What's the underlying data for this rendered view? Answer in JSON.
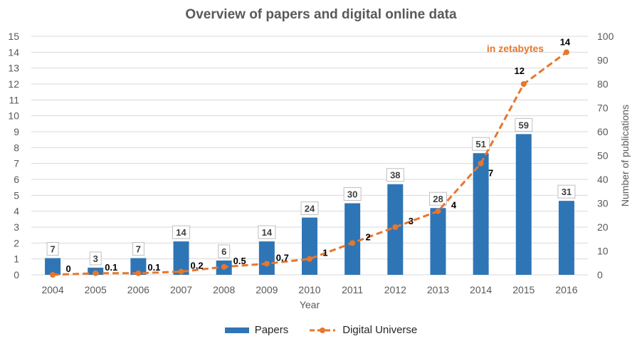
{
  "chart_data": {
    "type": "bar",
    "title": "Overview of papers and digital online data",
    "categories": [
      "2004",
      "2005",
      "2006",
      "2007",
      "2008",
      "2009",
      "2010",
      "2011",
      "2012",
      "2013",
      "2014",
      "2015",
      "2016"
    ],
    "xlabel": "Year",
    "left_axis": {
      "ticks": [
        "0",
        "1",
        "2",
        "3",
        "4",
        "5",
        "6",
        "7",
        "8",
        "9",
        "10",
        "11",
        "12",
        "13",
        "14",
        "15"
      ],
      "ylim": [
        0,
        15
      ]
    },
    "right_axis": {
      "label": "Number of publications",
      "ticks": [
        "0",
        "10",
        "20",
        "30",
        "40",
        "50",
        "60",
        "70",
        "80",
        "90",
        "100"
      ],
      "ylim": [
        0,
        100
      ]
    },
    "series": [
      {
        "name": "Papers",
        "kind": "bar",
        "axis": "right",
        "color": "#2e75b6",
        "values": [
          7,
          3,
          7,
          14,
          6,
          14,
          24,
          30,
          38,
          28,
          51,
          59,
          31
        ],
        "labels": [
          "7",
          "3",
          "7",
          "14",
          "6",
          "14",
          "24",
          "30",
          "38",
          "28",
          "51",
          "59",
          "31"
        ]
      },
      {
        "name": "Digital Universe",
        "kind": "line",
        "axis": "left",
        "color": "#e8762c",
        "values": [
          0,
          0.1,
          0.1,
          0.2,
          0.5,
          0.7,
          1,
          2,
          3,
          4,
          7,
          12,
          14
        ],
        "labels": [
          "0",
          "0.1",
          "0.1",
          "0.2",
          "0.5",
          "0.7",
          "1",
          "2",
          "3",
          "4",
          "7",
          "12",
          "14"
        ]
      }
    ],
    "annotation": "in zetabytes",
    "legend_position": "bottom"
  }
}
